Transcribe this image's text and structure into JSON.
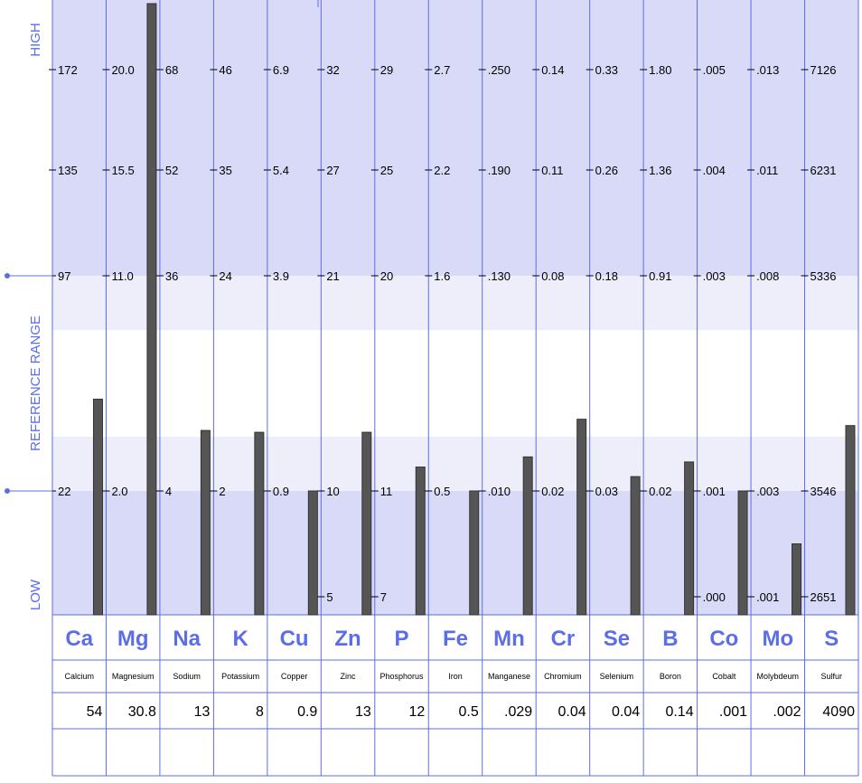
{
  "side_labels": {
    "high": "HIGH",
    "reference": "REFERENCE RANGE",
    "low": "LOW"
  },
  "colors": {
    "grid_line": "#5b6ee8",
    "band_dark": "#d9daf8",
    "band_light": "#eeeefb",
    "bar_fill": "#555555",
    "label_accent": "#5b6ee8"
  },
  "chart_data": {
    "type": "bar",
    "categories": [
      "Ca",
      "Mg",
      "Na",
      "K",
      "Cu",
      "Zn",
      "P",
      "Fe",
      "Mn",
      "Cr",
      "Se",
      "B",
      "Co",
      "Mo",
      "S"
    ],
    "element_names": [
      "Calcium",
      "Magnesium",
      "Sodium",
      "Potassium",
      "Copper",
      "Zinc",
      "Phosphorus",
      "Iron",
      "Manganese",
      "Chromium",
      "Selenium",
      "Boron",
      "Cobalt",
      "Molybdeum",
      "Sulfur"
    ],
    "values": [
      54,
      30.8,
      13,
      8,
      0.9,
      13,
      12,
      0.5,
      0.029,
      0.04,
      0.04,
      0.14,
      0.001,
      0.002,
      4090
    ],
    "value_labels": [
      "54",
      "30.8",
      "13",
      "8",
      "0.9",
      "13",
      "12",
      "0.5",
      ".029",
      "0.04",
      "0.04",
      "0.14",
      ".001",
      ".002",
      "4090"
    ],
    "tick_levels": [
      "high",
      "upper",
      "ref_high",
      "ref_low",
      "low"
    ],
    "tick_labels": [
      [
        "172",
        "135",
        "97",
        "22",
        ""
      ],
      [
        "20.0",
        "15.5",
        "11.0",
        "2.0",
        ""
      ],
      [
        "68",
        "52",
        "36",
        "4",
        ""
      ],
      [
        "46",
        "35",
        "24",
        "2",
        ""
      ],
      [
        "6.9",
        "5.4",
        "3.9",
        "0.9",
        ""
      ],
      [
        "32",
        "27",
        "21",
        "10",
        "5"
      ],
      [
        "29",
        "25",
        "20",
        "11",
        "7"
      ],
      [
        "2.7",
        "2.2",
        "1.6",
        "0.5",
        ""
      ],
      [
        ".250",
        ".190",
        ".130",
        ".010",
        ""
      ],
      [
        "0.14",
        "0.11",
        "0.08",
        "0.02",
        ""
      ],
      [
        "0.33",
        "0.26",
        "0.18",
        "0.03",
        ""
      ],
      [
        "1.80",
        "1.36",
        "0.91",
        "0.02",
        ""
      ],
      [
        ".005",
        ".004",
        ".003",
        ".001",
        ".000"
      ],
      [
        ".013",
        ".011",
        ".008",
        ".003",
        ".001"
      ],
      [
        "7126",
        "6231",
        "5336",
        "3546",
        "2651"
      ]
    ],
    "grid": true
  }
}
